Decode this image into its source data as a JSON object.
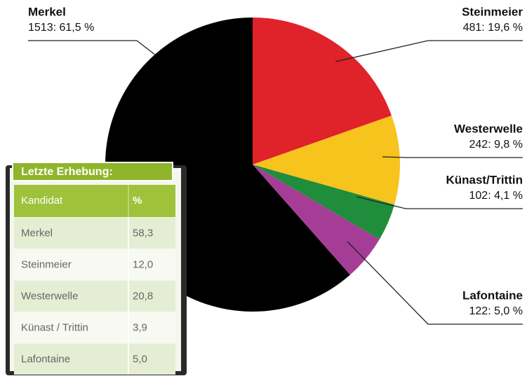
{
  "chart_data": {
    "type": "pie",
    "categories": [
      "Steinmeier",
      "Westerwelle",
      "Künast/Trittin",
      "Lafontaine",
      "Merkel"
    ],
    "values": [
      19.6,
      9.8,
      4.1,
      5.0,
      61.5
    ],
    "value_labels": [
      "481: 19,6 %",
      "242: 9,8 %",
      "102: 4,1 %",
      "122: 5,0 %",
      "1513: 61,5 %"
    ],
    "colors": [
      "#e0222b",
      "#f7c31d",
      "#1f8d3b",
      "#a53d97",
      "#000000"
    ]
  },
  "table": {
    "title": "Letzte Erhebung:",
    "header": [
      "Kandidat",
      "%"
    ],
    "rows": [
      [
        "Merkel",
        "58,3"
      ],
      [
        "Steinmeier",
        "12,0"
      ],
      [
        "Westerwelle",
        "20,8"
      ],
      [
        "Künast / Trittin",
        "3,9"
      ],
      [
        "Lafontaine",
        "5,0"
      ]
    ]
  }
}
